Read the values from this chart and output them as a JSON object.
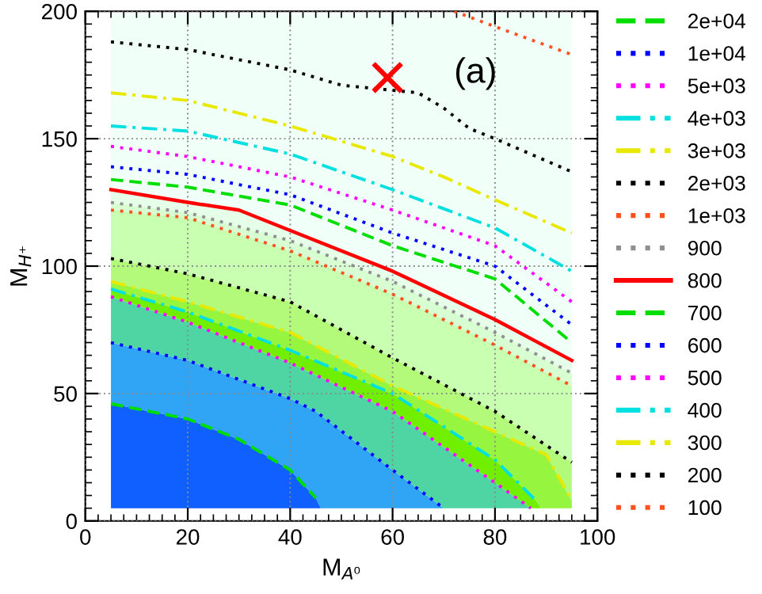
{
  "chart_data": {
    "type": "line",
    "xlabel": "M$_{A⁰}$",
    "ylabel": "M$_{H⁺}$",
    "xlim": [
      0,
      100
    ],
    "ylim": [
      0,
      200
    ],
    "xticks": [
      0,
      20,
      40,
      60,
      80,
      100
    ],
    "yticks": [
      0,
      50,
      100,
      150,
      200
    ],
    "grid": true,
    "legend": "right",
    "annotations": [
      "(a)"
    ],
    "series": [
      {
        "name": "2e+04",
        "color": "#00dd00",
        "line_style": "dashed",
        "x": [
          5,
          20,
          30,
          40,
          45
        ],
        "values": [
          46,
          40,
          32,
          20,
          9
        ]
      },
      {
        "name": "1e+04",
        "color": "#0000ff",
        "line_style": "dotted",
        "x": [
          5,
          20,
          40,
          45,
          60,
          70
        ],
        "values": [
          70,
          63,
          48,
          43,
          20,
          5
        ]
      },
      {
        "name": "5e+03",
        "color": "#ff00ff",
        "line_style": "dotted",
        "x": [
          5,
          20,
          40,
          60,
          80,
          87
        ],
        "values": [
          88,
          78,
          62,
          43,
          15,
          5
        ]
      },
      {
        "name": "4e+03",
        "color": "#00e0e0",
        "line_style": "dashdot",
        "x": [
          5,
          20,
          40,
          60,
          80,
          88
        ],
        "values": [
          91,
          82,
          67,
          50,
          24,
          8
        ]
      },
      {
        "name": "3e+03",
        "color": "#e8e800",
        "line_style": "dashdot",
        "x": [
          5,
          20,
          40,
          60,
          80,
          90,
          95
        ],
        "values": [
          94,
          86,
          74,
          53,
          35,
          26,
          8
        ]
      },
      {
        "name": "2e+03",
        "color": "#000000",
        "line_style": "dotted",
        "x": [
          5,
          20,
          40,
          60,
          80,
          95
        ],
        "values": [
          103,
          97,
          86,
          64,
          43,
          23
        ]
      },
      {
        "name": "1e+03",
        "color": "#ff5020",
        "line_style": "dotted",
        "x": [
          5,
          20,
          40,
          60,
          80,
          95
        ],
        "values": [
          122,
          119,
          106,
          89,
          69,
          53
        ]
      },
      {
        "name": "900",
        "color": "#909090",
        "line_style": "dotted",
        "x": [
          5,
          20,
          40,
          60,
          80,
          95
        ],
        "values": [
          125,
          121,
          110,
          94,
          74,
          58
        ]
      },
      {
        "name": "800",
        "color": "#ff0000",
        "line_style": "solid",
        "x": [
          5,
          20,
          30,
          40,
          60,
          80,
          95
        ],
        "values": [
          130,
          125,
          122,
          114,
          98,
          79,
          63
        ]
      },
      {
        "name": "700",
        "color": "#00dd00",
        "line_style": "dashed",
        "x": [
          5,
          20,
          40,
          60,
          80,
          95
        ],
        "values": [
          134,
          131,
          124,
          108,
          95,
          70
        ]
      },
      {
        "name": "600",
        "color": "#0000ff",
        "line_style": "dotted",
        "x": [
          5,
          20,
          40,
          60,
          80,
          95
        ],
        "values": [
          139,
          136,
          128,
          113,
          100,
          77
        ]
      },
      {
        "name": "500",
        "color": "#ff00ff",
        "line_style": "dotted",
        "x": [
          5,
          20,
          40,
          60,
          80,
          95
        ],
        "values": [
          147,
          143,
          135,
          122,
          108,
          86
        ]
      },
      {
        "name": "400",
        "color": "#00e0e0",
        "line_style": "dashdot",
        "x": [
          5,
          20,
          40,
          60,
          80,
          95
        ],
        "values": [
          155,
          153,
          144,
          130,
          115,
          98
        ]
      },
      {
        "name": "300",
        "color": "#e8e800",
        "line_style": "dashdot",
        "x": [
          5,
          20,
          40,
          50,
          60,
          70,
          80,
          95
        ],
        "values": [
          168,
          165,
          155,
          149,
          143,
          135,
          126,
          113
        ]
      },
      {
        "name": "200",
        "color": "#000000",
        "line_style": "dotted",
        "x": [
          5,
          20,
          40,
          50,
          60,
          65,
          70,
          75,
          80,
          95
        ],
        "values": [
          188,
          185,
          177,
          171,
          169,
          168,
          162,
          154,
          150,
          137
        ]
      },
      {
        "name": "100",
        "color": "#ff5020",
        "line_style": "dotted",
        "x": [
          72,
          80,
          95
        ],
        "values": [
          200,
          194,
          183
        ]
      },
      {
        "type": "scatter",
        "marker": "cross",
        "color": "#ff0000",
        "x": [
          59
        ],
        "values": [
          174
        ]
      }
    ]
  }
}
